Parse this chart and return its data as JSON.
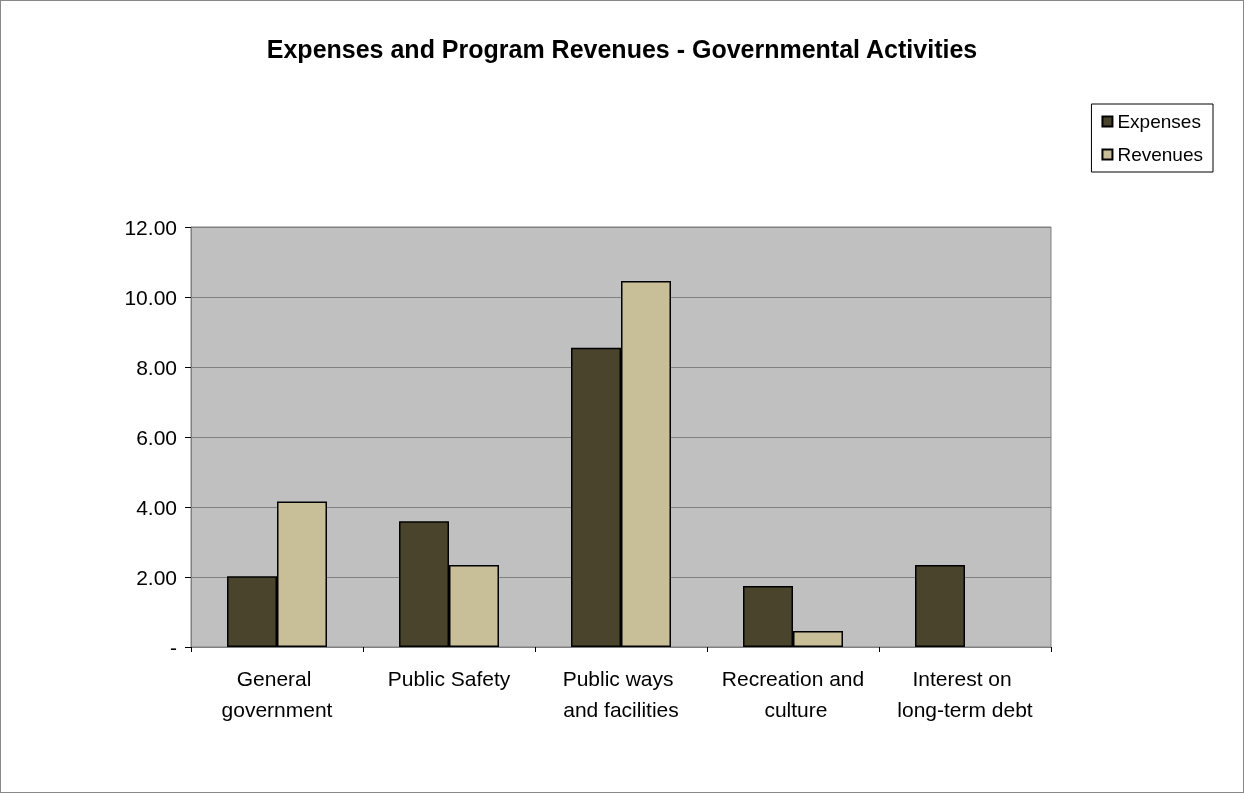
{
  "chart_data": {
    "type": "bar",
    "title": "Expenses and Program Revenues - Governmental Activities",
    "categories": [
      "General government",
      "Public Safety",
      "Public ways and facilities",
      "Recreation and culture",
      "Interest on long-term debt"
    ],
    "series": [
      {
        "name": "Expenses",
        "color": "#4a442c",
        "values": [
          2.02,
          3.59,
          8.55,
          1.74,
          2.34
        ]
      },
      {
        "name": "Revenues",
        "color": "#c8bf99",
        "values": [
          4.16,
          2.34,
          10.46,
          0.46,
          null
        ]
      }
    ],
    "ylim": [
      0,
      12
    ],
    "yticks": [
      {
        "value": 0,
        "label": "-"
      },
      {
        "value": 2,
        "label": "2.00"
      },
      {
        "value": 4,
        "label": "4.00"
      },
      {
        "value": 6,
        "label": "6.00"
      },
      {
        "value": 8,
        "label": "8.00"
      },
      {
        "value": 10,
        "label": "10.00"
      },
      {
        "value": 12,
        "label": "12.00"
      }
    ],
    "grid": "y",
    "legend": "top right"
  }
}
